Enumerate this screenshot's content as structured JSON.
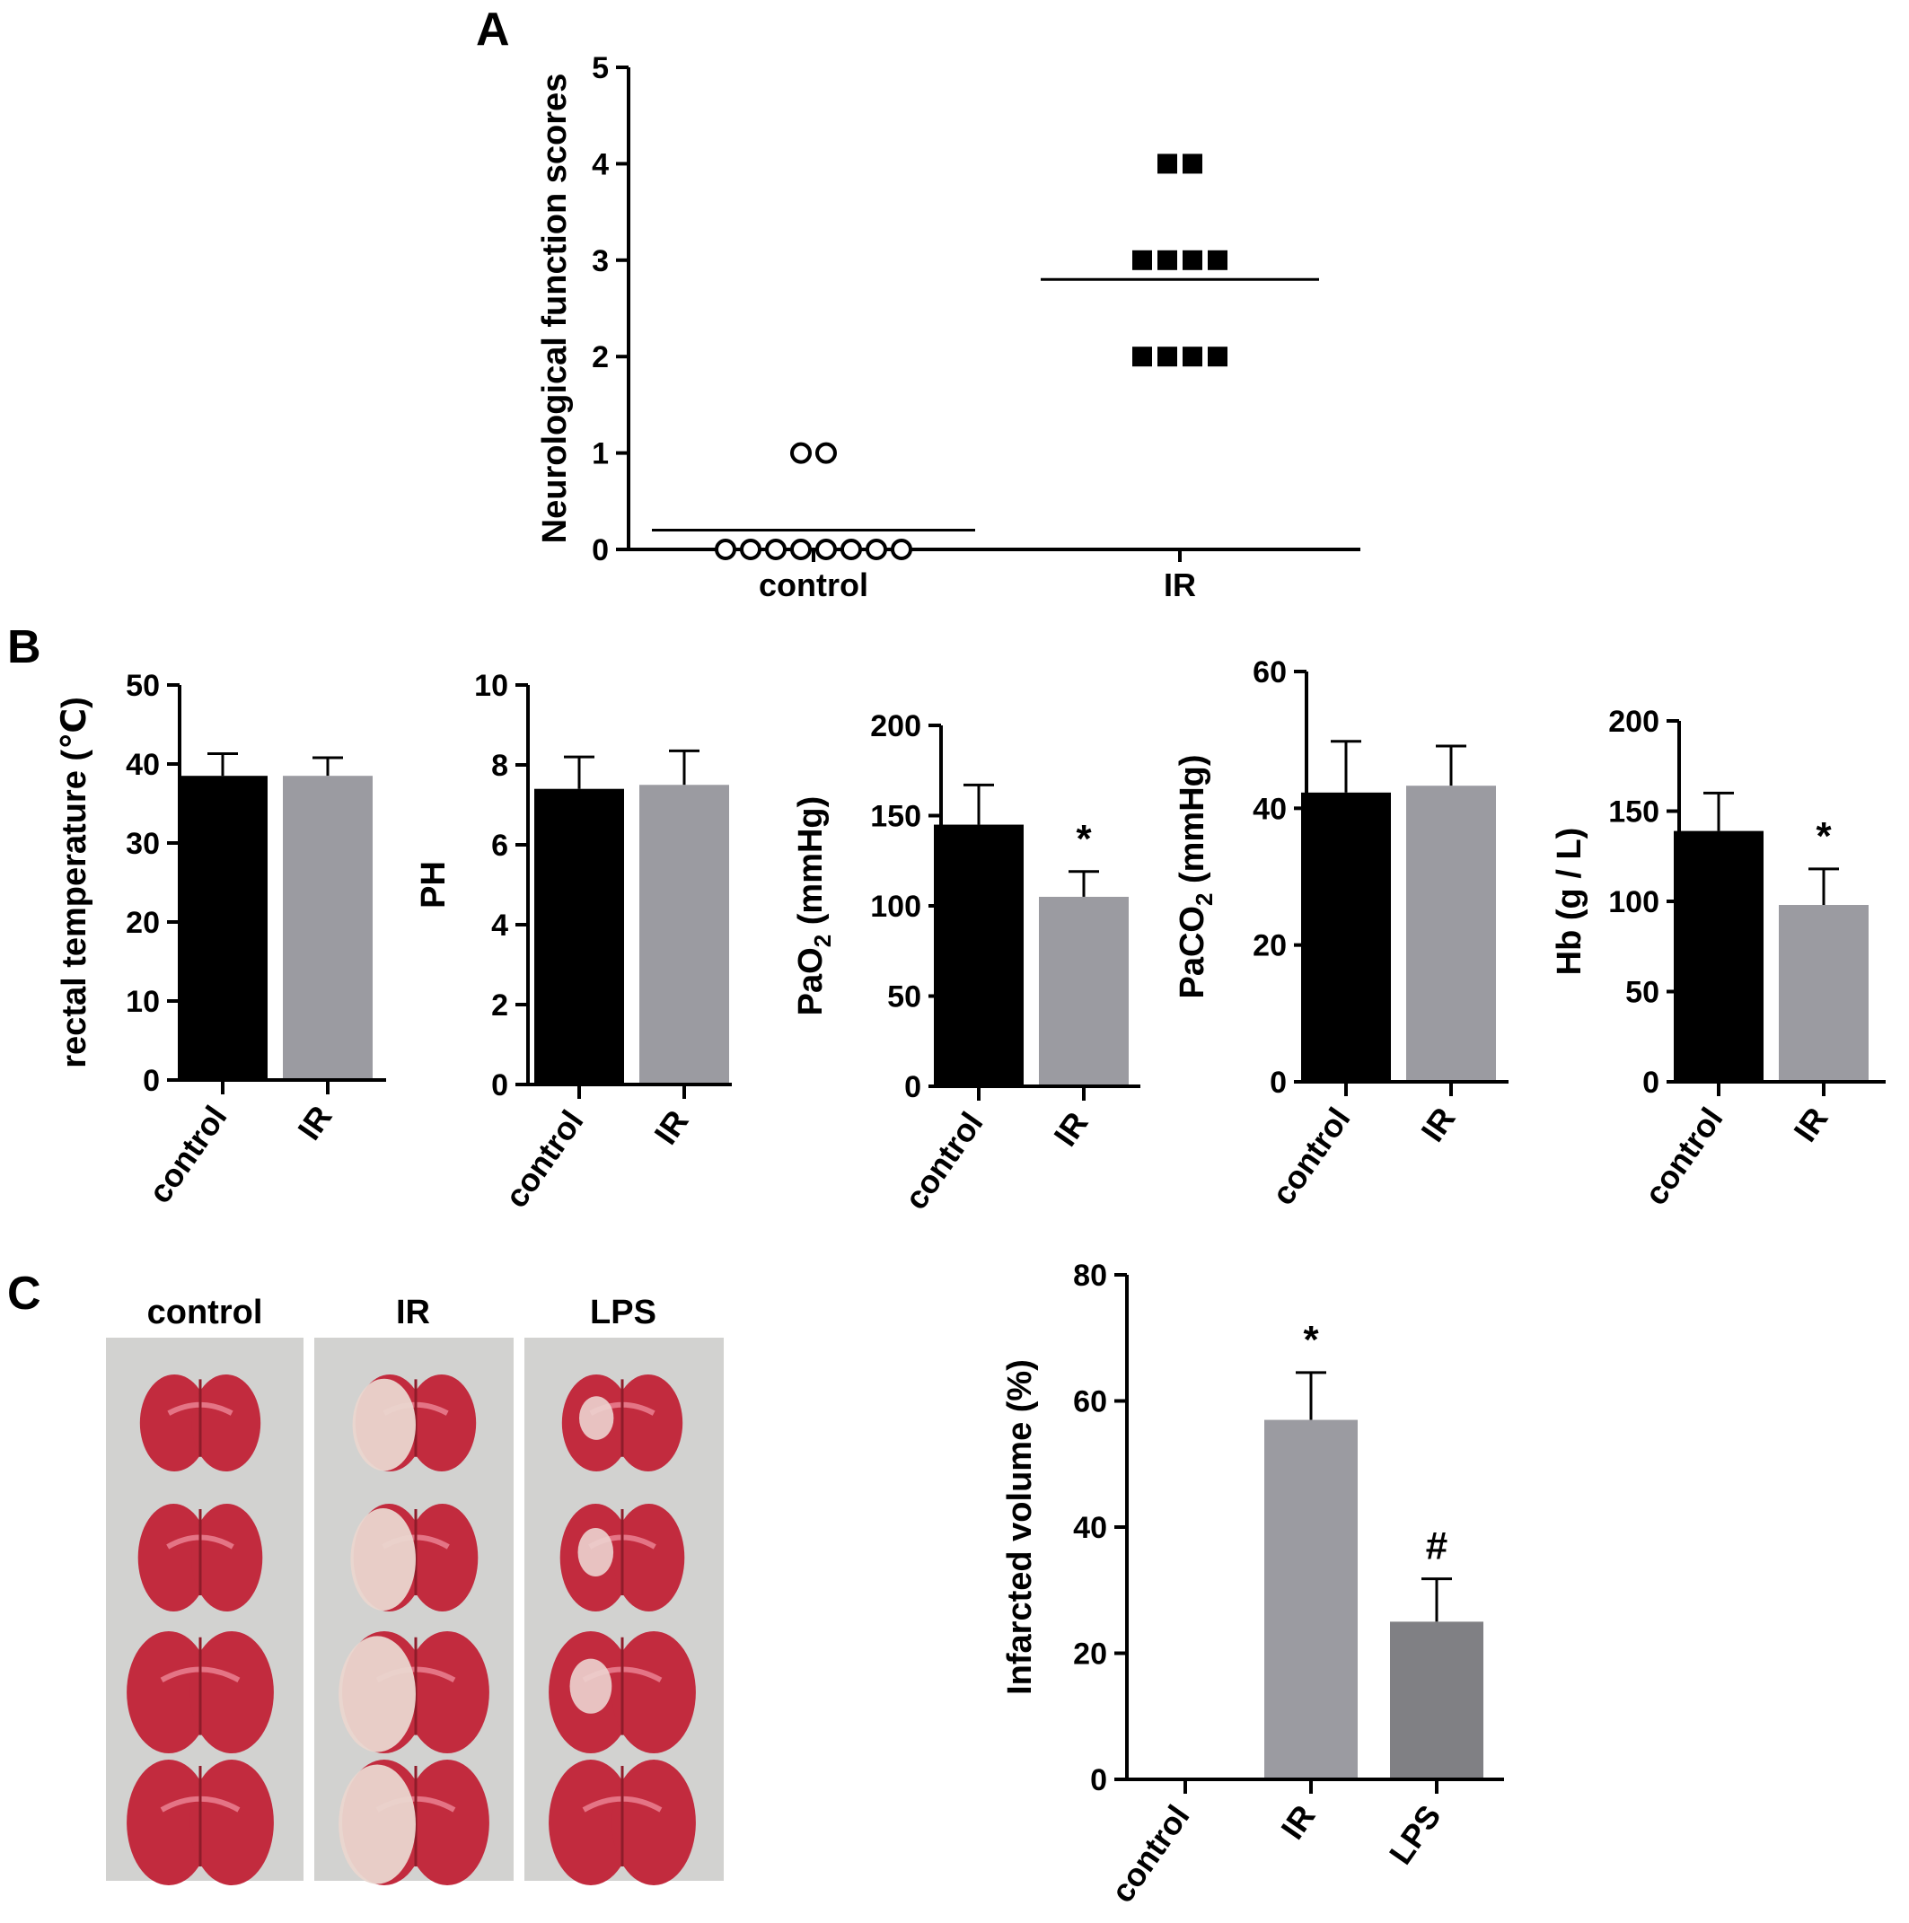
{
  "panels": {
    "A": "A",
    "B": "B",
    "C": "C"
  },
  "colors": {
    "control": "#000000",
    "IR": "#9b9ba1",
    "LPS": "#808084",
    "axis": "#000000"
  },
  "photo": {
    "columns": [
      "control",
      "IR",
      "LPS"
    ]
  },
  "chart_data": [
    {
      "id": "A",
      "type": "scatter",
      "ylabel": "Neurological function scores",
      "ylim": [
        0,
        5
      ],
      "yticks": [
        0,
        1,
        2,
        3,
        4,
        5
      ],
      "categories": [
        "control",
        "IR"
      ],
      "groups": [
        {
          "name": "control",
          "marker": "open-circle",
          "values": [
            0,
            0,
            0,
            0,
            0,
            0,
            0,
            0,
            1,
            1
          ],
          "mean": 0.2
        },
        {
          "name": "IR",
          "marker": "filled-square",
          "values": [
            2,
            2,
            2,
            2,
            3,
            3,
            3,
            3,
            4,
            4
          ],
          "mean": 2.8
        }
      ]
    },
    {
      "id": "B1",
      "type": "bar",
      "ylabel": "rectal temperature (℃)",
      "ylim": [
        0,
        50
      ],
      "yticks": [
        0,
        10,
        20,
        30,
        40,
        50
      ],
      "categories": [
        "control",
        "IR"
      ],
      "values": [
        38.5,
        38.5
      ],
      "errors": [
        2.8,
        2.3
      ],
      "annotations": [
        "",
        ""
      ]
    },
    {
      "id": "B2",
      "type": "bar",
      "ylabel": "PH",
      "ylim": [
        0,
        10
      ],
      "yticks": [
        0,
        2,
        4,
        6,
        8,
        10
      ],
      "categories": [
        "control",
        "IR"
      ],
      "values": [
        7.4,
        7.5
      ],
      "errors": [
        0.8,
        0.85
      ],
      "annotations": [
        "",
        ""
      ]
    },
    {
      "id": "B3",
      "type": "bar",
      "ylabel_main": "PaO",
      "ylabel_sub": "2",
      "ylabel_tail": " (mmHg)",
      "ylim": [
        0,
        200
      ],
      "yticks": [
        0,
        50,
        100,
        150,
        200
      ],
      "categories": [
        "control",
        "IR"
      ],
      "values": [
        145,
        105
      ],
      "errors": [
        22,
        14
      ],
      "annotations": [
        "",
        "*"
      ]
    },
    {
      "id": "B4",
      "type": "bar",
      "ylabel_main": "PaCO",
      "ylabel_sub": "2",
      "ylabel_tail": " (mmHg)",
      "ylim": [
        0,
        60
      ],
      "yticks": [
        0,
        20,
        40,
        60
      ],
      "categories": [
        "control",
        "IR"
      ],
      "values": [
        42.3,
        43.3
      ],
      "errors": [
        7.5,
        5.8
      ],
      "annotations": [
        "",
        ""
      ]
    },
    {
      "id": "B5",
      "type": "bar",
      "ylabel": "Hb (g / L)",
      "ylim": [
        0,
        200
      ],
      "yticks": [
        0,
        50,
        100,
        150,
        200
      ],
      "categories": [
        "control",
        "IR"
      ],
      "values": [
        139,
        98
      ],
      "errors": [
        21,
        20
      ],
      "annotations": [
        "",
        "*"
      ]
    },
    {
      "id": "C",
      "type": "bar",
      "ylabel": "Infarcted volume (%)",
      "ylim": [
        0,
        80
      ],
      "yticks": [
        0,
        20,
        40,
        60,
        80
      ],
      "categories": [
        "control",
        "IR",
        "LPS"
      ],
      "values": [
        0,
        57,
        25
      ],
      "errors": [
        0,
        7.5,
        6.8
      ],
      "annotations": [
        "",
        "*",
        "#"
      ]
    }
  ]
}
